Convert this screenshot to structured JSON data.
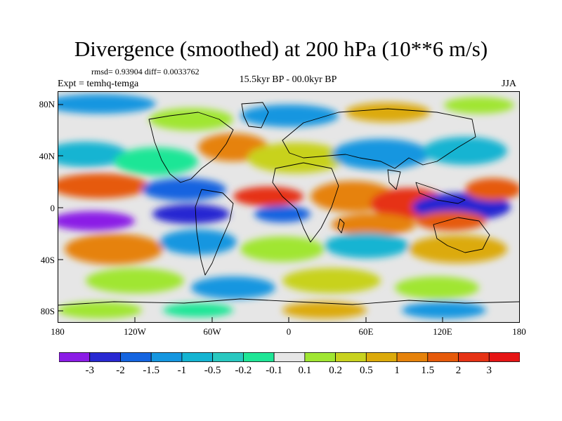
{
  "title": "Divergence (smoothed) at 200 hPa (10**6 m/s)",
  "stats": "rmsd= 0.93904 diff= 0.0033762",
  "experiment": "Expt = temhq-temga",
  "period": "15.5kyr BP - 00.0kyr BP",
  "season": "JJA",
  "lat_labels": [
    "80N",
    "40N",
    "0",
    "40S",
    "80S"
  ],
  "lon_labels": [
    "180",
    "120W",
    "60W",
    "0",
    "60E",
    "120E",
    "180"
  ],
  "colorbar": {
    "colors": [
      "#8b1ce6",
      "#2828d2",
      "#1464e0",
      "#1496e0",
      "#14b4d2",
      "#28c8c0",
      "#1ee696",
      "#e6e6e6",
      "#a0e632",
      "#c8d21e",
      "#dcaa0a",
      "#e6820a",
      "#e65a0a",
      "#e63214",
      "#e61414"
    ],
    "labels": [
      "-3",
      "-2",
      "-1.5",
      "-1",
      "-0.5",
      "-0.2",
      "-0.1",
      "0.1",
      "0.2",
      "0.5",
      "1",
      "1.5",
      "2",
      "3"
    ]
  }
}
